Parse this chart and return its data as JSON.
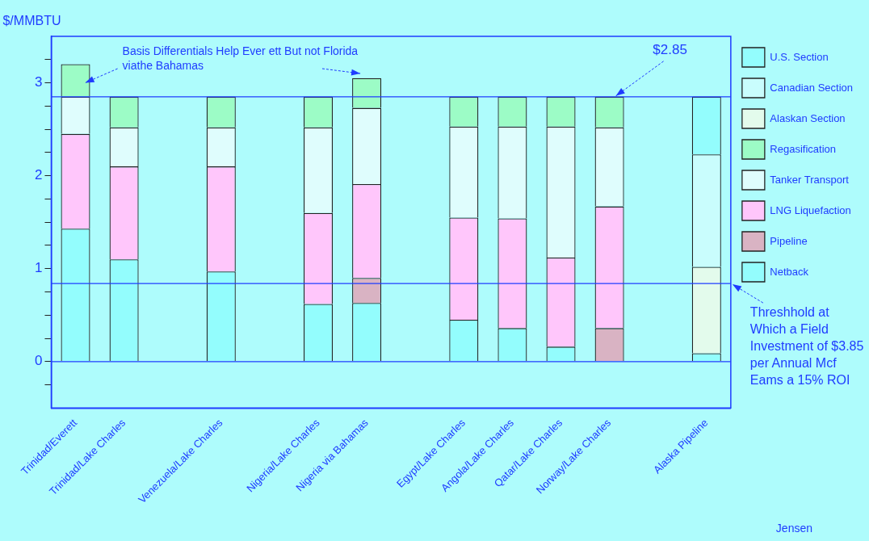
{
  "chart_data": {
    "type": "bar",
    "stacked": true,
    "ylabel": "$/MMBTU",
    "categories": [
      "Trinidad/Everett",
      "Trinidad/Lake Charles",
      null,
      "Venezuela/Lake Charles",
      null,
      "Nigeria/Lake Charles",
      "Nigeria via Bahamas",
      null,
      "Egypt/Lake Charles",
      "Angola/Lake Charles",
      "Qatar/Lake Charles",
      "Norway/Lake Charles",
      null,
      "Alaska Pipeline"
    ],
    "series": [
      {
        "name": "Netback",
        "color": "#93fdfd",
        "values": [
          1.43,
          1.1,
          null,
          0.97,
          null,
          0.62,
          0.63,
          null,
          0.45,
          0.36,
          0.16,
          null,
          null,
          0.09
        ]
      },
      {
        "name": "Pipeline",
        "color": "#d9b3c3",
        "values": [
          null,
          null,
          null,
          null,
          null,
          null,
          0.27,
          null,
          null,
          null,
          null,
          0.36,
          null,
          null
        ]
      },
      {
        "name": "LNG Liquefaction",
        "color": "#ffc6fb",
        "values": [
          1.02,
          1.0,
          null,
          1.13,
          null,
          0.98,
          1.01,
          null,
          1.1,
          1.18,
          0.96,
          1.31,
          null,
          null
        ]
      },
      {
        "name": "Tanker Transport",
        "color": "#dffdfd",
        "values": [
          0.4,
          0.42,
          null,
          0.42,
          null,
          0.92,
          0.82,
          null,
          0.98,
          0.99,
          1.41,
          0.85,
          null,
          null
        ]
      },
      {
        "name": "Regasification",
        "color": "#9cfcc6",
        "values": [
          0.35,
          0.33,
          null,
          0.33,
          null,
          0.33,
          0.32,
          null,
          0.32,
          0.32,
          0.32,
          0.33,
          null,
          null
        ]
      },
      {
        "name": "Alaskan Section",
        "color": "#e3fbec",
        "values": [
          null,
          null,
          null,
          null,
          null,
          null,
          null,
          null,
          null,
          null,
          null,
          null,
          null,
          0.93
        ]
      },
      {
        "name": "Canadian Section",
        "color": "#c9fdfd",
        "values": [
          null,
          null,
          null,
          null,
          null,
          null,
          null,
          null,
          null,
          null,
          null,
          null,
          null,
          1.21
        ]
      },
      {
        "name": "U.S. Section",
        "color": "#93fdfd",
        "values": [
          null,
          null,
          null,
          null,
          null,
          null,
          null,
          null,
          null,
          null,
          null,
          null,
          null,
          0.62
        ]
      }
    ],
    "ylim": [
      -0.5,
      3.5
    ],
    "yticks": [
      {
        "value": -0.25,
        "label": null
      },
      0,
      {
        "value": 0.25,
        "label": null
      },
      {
        "value": 0.5,
        "label": null
      },
      {
        "value": 0.75,
        "label": null
      },
      1,
      {
        "value": 1.25,
        "label": null
      },
      {
        "value": 1.5,
        "label": null
      },
      {
        "value": 1.75,
        "label": null
      },
      2,
      {
        "value": 2.25,
        "label": null
      },
      {
        "value": 2.5,
        "label": null
      },
      {
        "value": 2.75,
        "label": null
      },
      3,
      {
        "value": 3.25,
        "label": null
      }
    ],
    "ref_lines": [
      {
        "axis": "y",
        "value": 2.85,
        "label": "$2.85",
        "color": "#1f3cff"
      },
      {
        "axis": "y",
        "value": 0.84,
        "label": "Threshhold at\nWhich a Field\nInvestment of $3.85\nper Annual Mcf\nEams a 15% ROI",
        "color": "#1f3cff"
      },
      {
        "axis": "y",
        "value": 0,
        "color": "#1f3cff"
      }
    ],
    "annotations": [
      "Basis Differentials Help Ever ett But not Florida\nviathe Bahamas",
      "Jensen"
    ],
    "legend": "right",
    "grid": false
  }
}
